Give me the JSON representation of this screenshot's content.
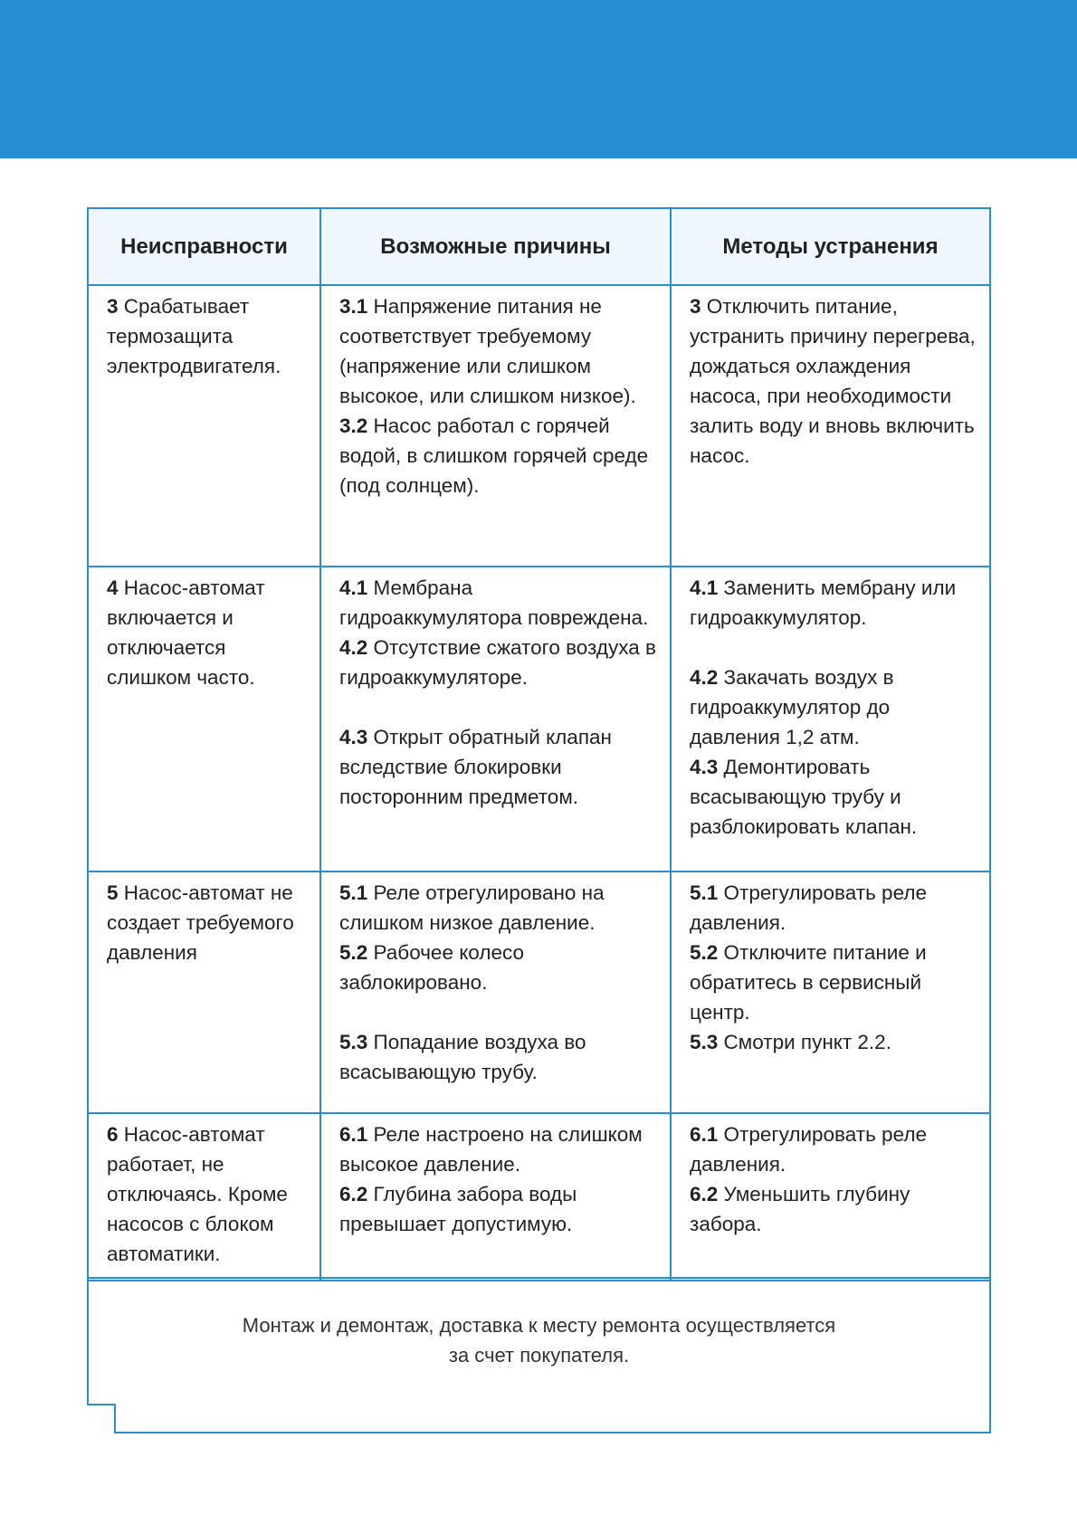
{
  "colors": {
    "accent": "#238fd1",
    "header_bg": "#f0f6fd",
    "border": "#2a8fd0"
  },
  "table": {
    "headers": [
      "Неисправности",
      "Возможные причины",
      "Методы устранения"
    ],
    "rows": [
      {
        "fault": [
          {
            "num": "3",
            "text": " Срабатывает термозащита электродвигателя."
          }
        ],
        "causes": [
          {
            "num": "3.1",
            "text": " Напряжение питания не соответствует требуемому (напряжение или слишком высокое, или слишком низкое)."
          },
          {
            "num": "3.2",
            "text": " Насос работал с горячей водой, в слишком горячей среде (под солнцем)."
          }
        ],
        "methods": [
          {
            "num": "3",
            "text": " Отключить питание, устранить  причину перегрева, дождаться охлаждения насоса, при необходимости залить воду и вновь включить насос."
          }
        ]
      },
      {
        "fault": [
          {
            "num": "4",
            "text": " Насос-автомат включается и отключается слишком часто."
          }
        ],
        "causes": [
          {
            "num": "4.1",
            "text": " Мембрана гидроаккумулятора повреждена."
          },
          {
            "num": "4.2",
            "text": " Отсутствие сжатого воздуха в гидроаккумуляторе."
          },
          {
            "gap": true
          },
          {
            "num": "4.3",
            "text": " Открыт обратный клапан вследствие блокировки посторонним предметом."
          }
        ],
        "methods": [
          {
            "num": "4.1",
            "text": " Заменить мембрану или гидроаккумулятор."
          },
          {
            "gap": true
          },
          {
            "num": "4.2",
            "text": " Закачать воздух в гидроаккумулятор до давления 1,2 атм."
          },
          {
            "num": "4.3",
            "text": " Демонтировать всасывающую трубу и разблокировать клапан."
          }
        ]
      },
      {
        "fault": [
          {
            "num": "5",
            "text": " Насос-автомат не создает требуемого давления"
          }
        ],
        "causes": [
          {
            "num": "5.1",
            "text": " Реле отрегулировано на слишком  низкое давление."
          },
          {
            "num": "5.2",
            "text": " Рабочее колесо заблокировано."
          },
          {
            "gap": true
          },
          {
            "num": "5.3",
            "text": " Попадание воздуха во всасывающую трубу."
          }
        ],
        "methods": [
          {
            "num": "5.1",
            "text": " Отрегулировать реле давления."
          },
          {
            "num": "5.2",
            "text": " Отключите питание и обратитесь в сервисный центр."
          },
          {
            "num": "5.3",
            "text": " Смотри пункт 2.2."
          }
        ]
      },
      {
        "fault": [
          {
            "num": "6",
            "text": " Насос-автомат работает, не отключаясь. Кроме насосов с блоком автоматики."
          }
        ],
        "causes": [
          {
            "num": "6.1",
            "text": " Реле настроено на слишком высокое давление."
          },
          {
            "num": "6.2",
            "text": " Глубина забора воды превышает допустимую."
          }
        ],
        "methods": [
          {
            "num": "6.1",
            "text": " Отрегулировать реле давления."
          },
          {
            "num": "6.2",
            "text": " Уменьшить глубину забора."
          }
        ]
      }
    ]
  },
  "footer": {
    "line1": "Монтаж и демонтаж, доставка к месту ремонта осуществляется",
    "line2": "за счет покупателя."
  }
}
